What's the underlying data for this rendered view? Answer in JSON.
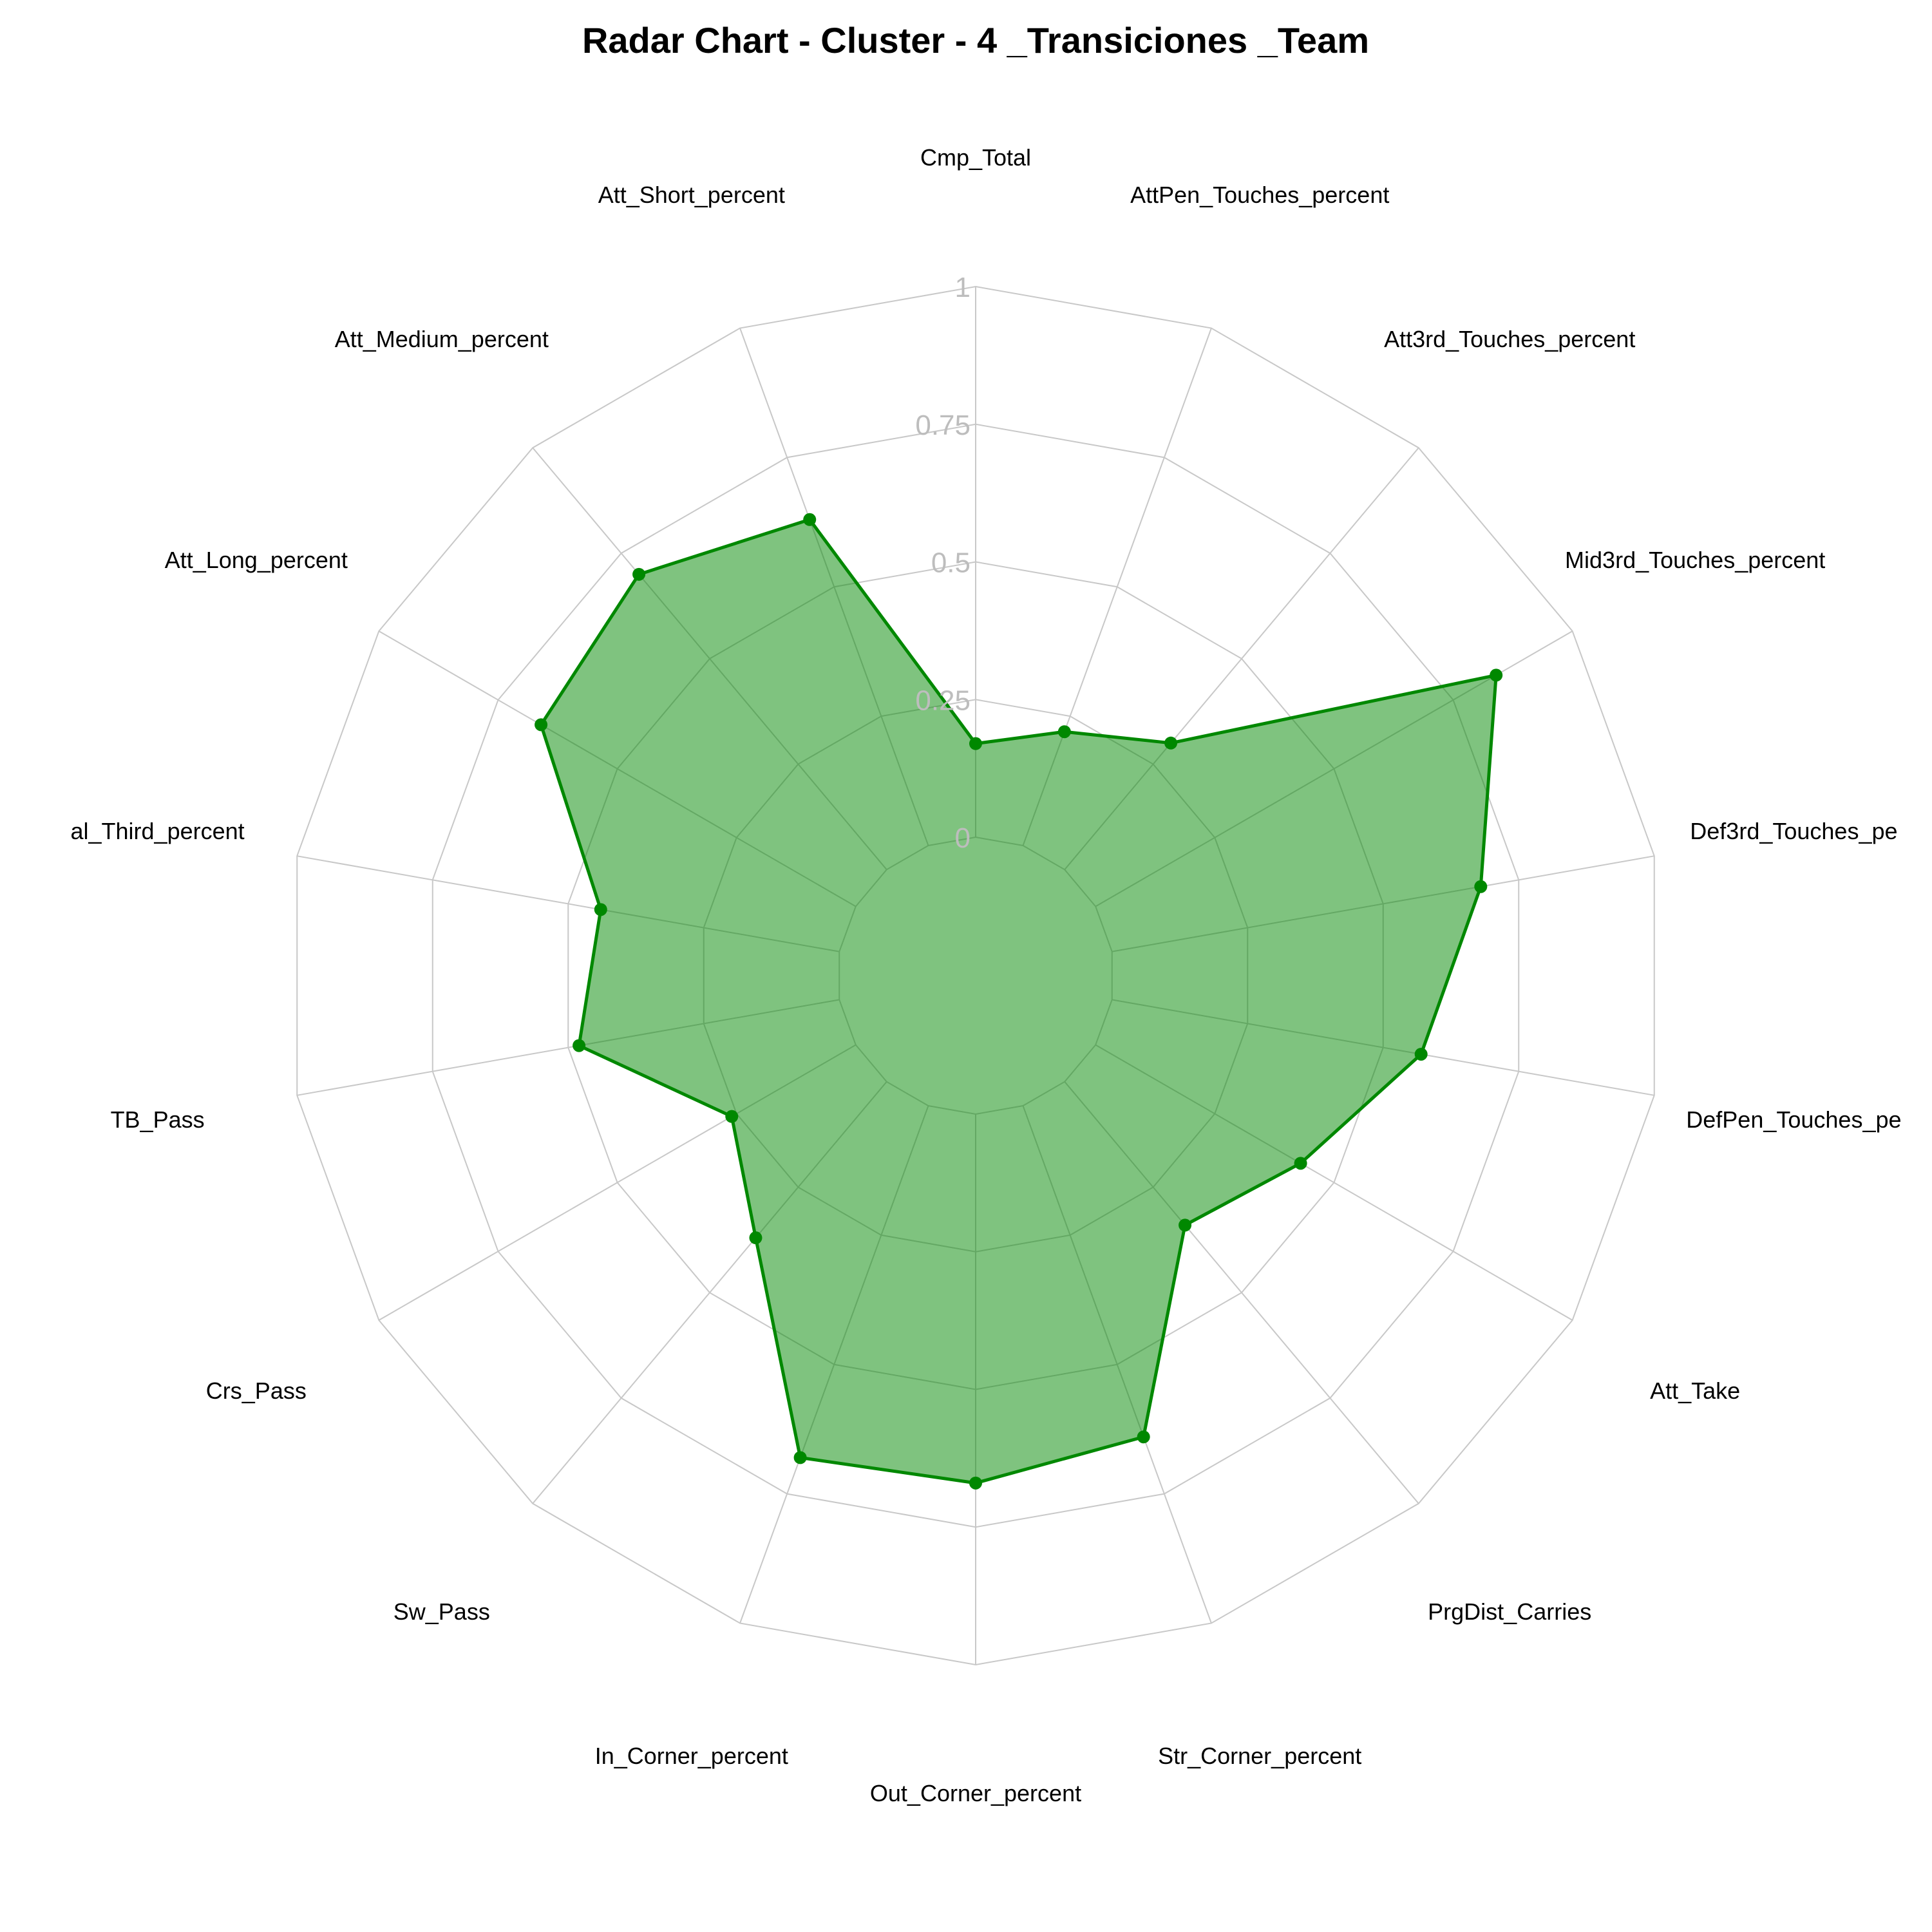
{
  "chart_data": {
    "type": "radar",
    "title": "Radar Chart - Cluster - 4 _Transiciones _Team",
    "axes": [
      "Cmp_Total",
      "AttPen_Touches_percent",
      "Att3rd_Touches_percent",
      "Mid3rd_Touches_percent",
      "Def3rd_Touches_pe",
      "DefPen_Touches_pe",
      "Att_Take",
      "PrgDist_Carries",
      "Str_Corner_percent",
      "Out_Corner_percent",
      "In_Corner_percent",
      "Sw_Pass",
      "Crs_Pass",
      "TB_Pass",
      "al_Third_percent",
      "Att_Long_percent",
      "Att_Medium_percent",
      "Att_Short_percent"
    ],
    "series": [
      {
        "values": [
          0.17,
          0.22,
          0.3,
          0.84,
          0.68,
          0.57,
          0.43,
          0.34,
          0.64,
          0.67,
          0.68,
          0.37,
          0.26,
          0.48,
          0.44,
          0.66,
          0.7,
          0.63
        ],
        "color": "#008800"
      }
    ],
    "ticks": [
      "0",
      "0.25",
      "0.5",
      "0.75",
      "1"
    ],
    "rlim": [
      0,
      1
    ],
    "grid": true,
    "legend": false
  }
}
